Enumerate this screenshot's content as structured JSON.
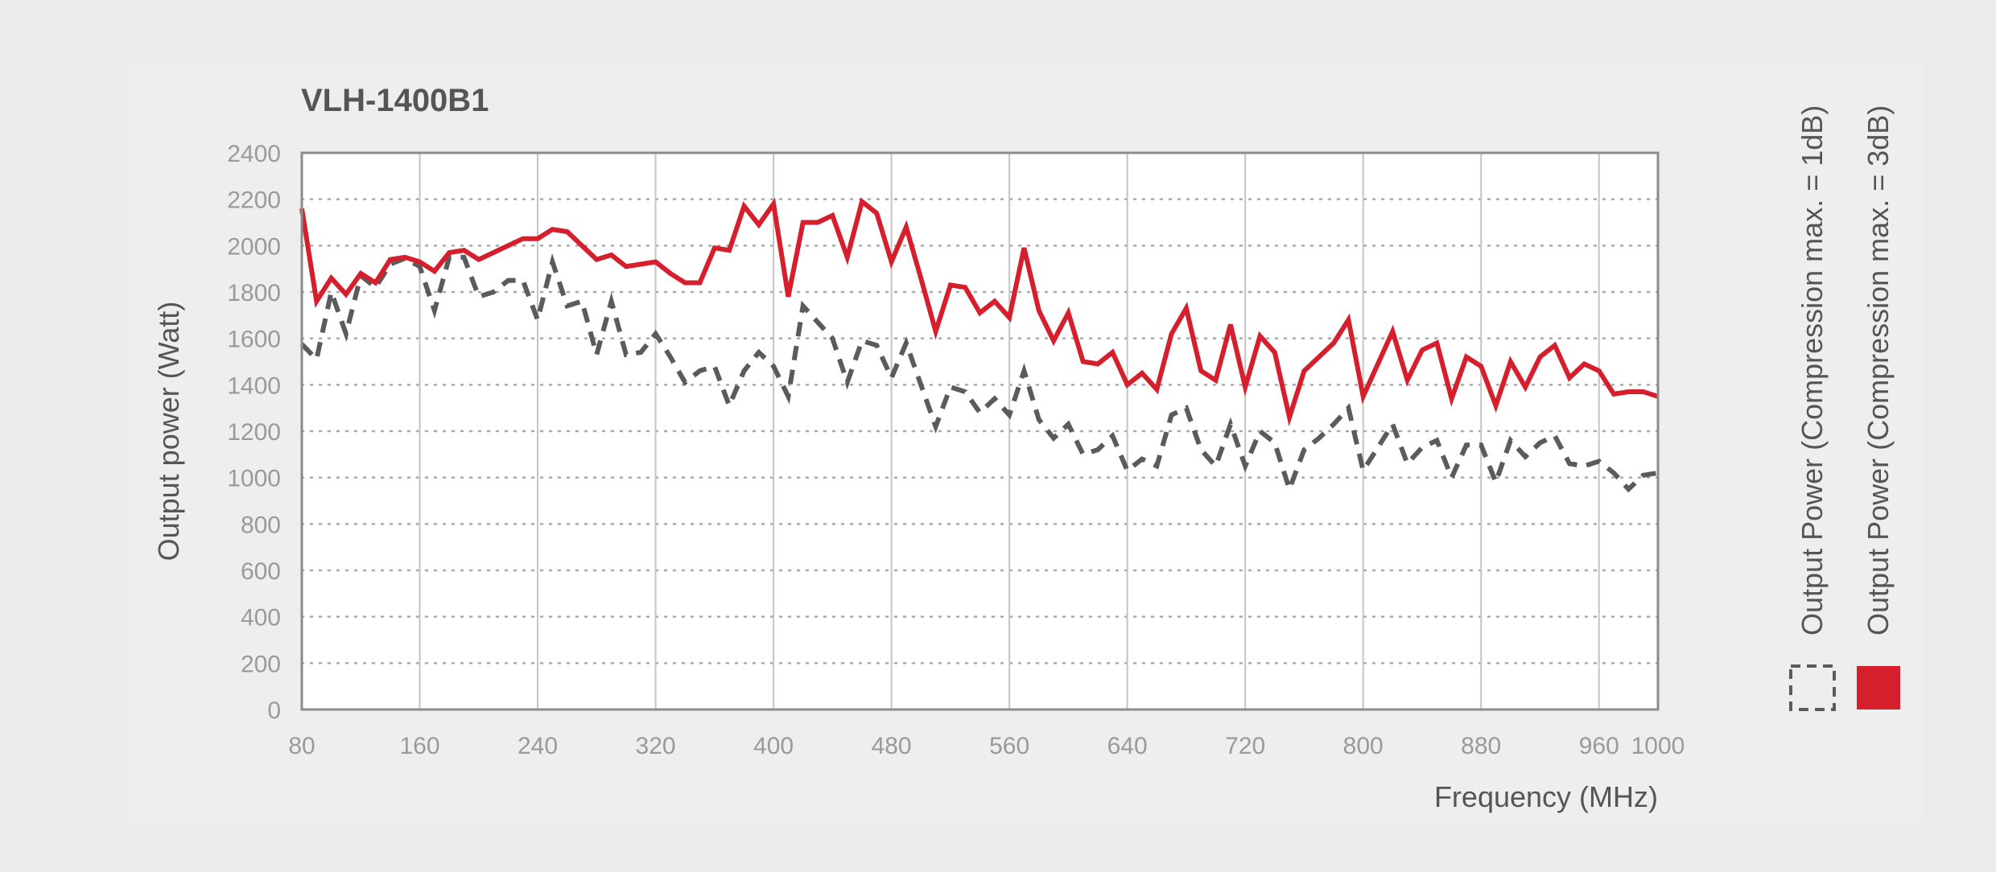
{
  "chart_data": {
    "type": "line",
    "title": "VLH-1400B1",
    "xlabel": "Frequency (MHz)",
    "ylabel": "Output power (Watt)",
    "xlim": [
      80,
      1000
    ],
    "ylim": [
      0,
      2400
    ],
    "x_ticks": [
      80,
      160,
      240,
      320,
      400,
      480,
      560,
      640,
      720,
      800,
      880,
      960,
      1000
    ],
    "y_ticks": [
      0,
      200,
      400,
      600,
      800,
      1000,
      1200,
      1400,
      1600,
      1800,
      2000,
      2200,
      2400
    ],
    "grid": true,
    "legend_position": "right",
    "series": [
      {
        "name": "Output Power (Compression max. = 1dB)",
        "color": "#5b5b5b",
        "style": "dashed",
        "points": [
          [
            80,
            1575
          ],
          [
            90,
            1510
          ],
          [
            100,
            1800
          ],
          [
            110,
            1620
          ],
          [
            120,
            1870
          ],
          [
            130,
            1820
          ],
          [
            140,
            1920
          ],
          [
            150,
            1945
          ],
          [
            160,
            1910
          ],
          [
            170,
            1720
          ],
          [
            180,
            1950
          ],
          [
            190,
            1950
          ],
          [
            200,
            1780
          ],
          [
            210,
            1800
          ],
          [
            220,
            1850
          ],
          [
            230,
            1850
          ],
          [
            240,
            1680
          ],
          [
            250,
            1930
          ],
          [
            260,
            1740
          ],
          [
            270,
            1760
          ],
          [
            280,
            1530
          ],
          [
            290,
            1760
          ],
          [
            300,
            1530
          ],
          [
            310,
            1540
          ],
          [
            320,
            1620
          ],
          [
            330,
            1520
          ],
          [
            340,
            1410
          ],
          [
            350,
            1460
          ],
          [
            360,
            1480
          ],
          [
            370,
            1310
          ],
          [
            380,
            1460
          ],
          [
            390,
            1540
          ],
          [
            400,
            1480
          ],
          [
            410,
            1350
          ],
          [
            420,
            1740
          ],
          [
            430,
            1670
          ],
          [
            440,
            1600
          ],
          [
            450,
            1410
          ],
          [
            460,
            1590
          ],
          [
            470,
            1570
          ],
          [
            480,
            1430
          ],
          [
            490,
            1580
          ],
          [
            500,
            1400
          ],
          [
            510,
            1220
          ],
          [
            520,
            1390
          ],
          [
            530,
            1370
          ],
          [
            540,
            1280
          ],
          [
            550,
            1340
          ],
          [
            560,
            1270
          ],
          [
            570,
            1460
          ],
          [
            580,
            1250
          ],
          [
            590,
            1170
          ],
          [
            600,
            1230
          ],
          [
            610,
            1100
          ],
          [
            620,
            1120
          ],
          [
            630,
            1180
          ],
          [
            640,
            1030
          ],
          [
            650,
            1080
          ],
          [
            660,
            1050
          ],
          [
            670,
            1270
          ],
          [
            680,
            1300
          ],
          [
            690,
            1120
          ],
          [
            700,
            1050
          ],
          [
            710,
            1230
          ],
          [
            720,
            1050
          ],
          [
            730,
            1200
          ],
          [
            740,
            1150
          ],
          [
            750,
            950
          ],
          [
            760,
            1120
          ],
          [
            770,
            1170
          ],
          [
            780,
            1230
          ],
          [
            790,
            1300
          ],
          [
            800,
            1030
          ],
          [
            810,
            1130
          ],
          [
            820,
            1230
          ],
          [
            830,
            1060
          ],
          [
            840,
            1130
          ],
          [
            850,
            1160
          ],
          [
            860,
            1000
          ],
          [
            870,
            1140
          ],
          [
            880,
            1140
          ],
          [
            890,
            980
          ],
          [
            900,
            1160
          ],
          [
            910,
            1090
          ],
          [
            920,
            1150
          ],
          [
            930,
            1180
          ],
          [
            940,
            1060
          ],
          [
            950,
            1050
          ],
          [
            960,
            1070
          ],
          [
            970,
            1020
          ],
          [
            980,
            950
          ],
          [
            990,
            1010
          ],
          [
            1000,
            1020
          ]
        ]
      },
      {
        "name": "Output Power (Compression max. = 3dB)",
        "color": "#d61f2c",
        "style": "solid",
        "points": [
          [
            80,
            2160
          ],
          [
            90,
            1760
          ],
          [
            100,
            1860
          ],
          [
            110,
            1790
          ],
          [
            120,
            1880
          ],
          [
            130,
            1840
          ],
          [
            140,
            1940
          ],
          [
            150,
            1950
          ],
          [
            160,
            1930
          ],
          [
            170,
            1890
          ],
          [
            180,
            1970
          ],
          [
            190,
            1980
          ],
          [
            200,
            1940
          ],
          [
            210,
            1970
          ],
          [
            220,
            2000
          ],
          [
            230,
            2030
          ],
          [
            240,
            2030
          ],
          [
            250,
            2070
          ],
          [
            260,
            2060
          ],
          [
            270,
            2000
          ],
          [
            280,
            1940
          ],
          [
            290,
            1960
          ],
          [
            300,
            1910
          ],
          [
            310,
            1920
          ],
          [
            320,
            1930
          ],
          [
            330,
            1880
          ],
          [
            340,
            1840
          ],
          [
            350,
            1840
          ],
          [
            360,
            1990
          ],
          [
            370,
            1980
          ],
          [
            380,
            2170
          ],
          [
            390,
            2090
          ],
          [
            400,
            2180
          ],
          [
            410,
            1780
          ],
          [
            420,
            2100
          ],
          [
            430,
            2100
          ],
          [
            440,
            2130
          ],
          [
            450,
            1950
          ],
          [
            460,
            2190
          ],
          [
            470,
            2140
          ],
          [
            480,
            1930
          ],
          [
            490,
            2080
          ],
          [
            500,
            1860
          ],
          [
            510,
            1630
          ],
          [
            520,
            1830
          ],
          [
            530,
            1820
          ],
          [
            540,
            1710
          ],
          [
            550,
            1760
          ],
          [
            560,
            1690
          ],
          [
            570,
            1990
          ],
          [
            580,
            1720
          ],
          [
            590,
            1590
          ],
          [
            600,
            1710
          ],
          [
            610,
            1500
          ],
          [
            620,
            1490
          ],
          [
            630,
            1540
          ],
          [
            640,
            1400
          ],
          [
            650,
            1450
          ],
          [
            660,
            1380
          ],
          [
            670,
            1620
          ],
          [
            680,
            1730
          ],
          [
            690,
            1460
          ],
          [
            700,
            1420
          ],
          [
            710,
            1660
          ],
          [
            720,
            1390
          ],
          [
            730,
            1610
          ],
          [
            740,
            1540
          ],
          [
            750,
            1260
          ],
          [
            760,
            1460
          ],
          [
            770,
            1520
          ],
          [
            780,
            1580
          ],
          [
            790,
            1680
          ],
          [
            800,
            1350
          ],
          [
            810,
            1490
          ],
          [
            820,
            1630
          ],
          [
            830,
            1420
          ],
          [
            840,
            1550
          ],
          [
            850,
            1580
          ],
          [
            860,
            1340
          ],
          [
            870,
            1520
          ],
          [
            880,
            1480
          ],
          [
            890,
            1310
          ],
          [
            900,
            1500
          ],
          [
            910,
            1390
          ],
          [
            920,
            1520
          ],
          [
            930,
            1570
          ],
          [
            940,
            1430
          ],
          [
            950,
            1490
          ],
          [
            960,
            1460
          ],
          [
            970,
            1360
          ],
          [
            980,
            1370
          ],
          [
            990,
            1370
          ],
          [
            1000,
            1350
          ]
        ]
      }
    ]
  }
}
